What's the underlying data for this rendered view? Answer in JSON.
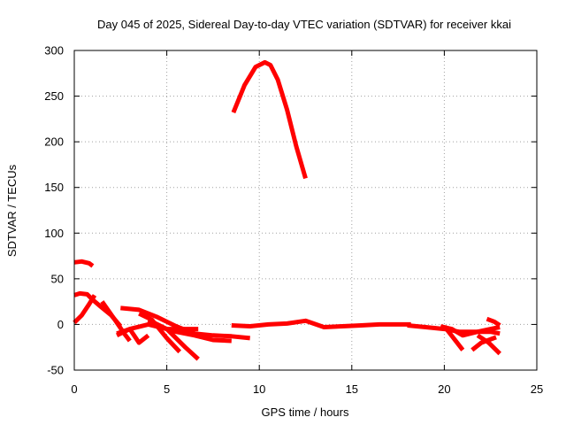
{
  "chart_data": {
    "type": "line",
    "title": "Day 045 of 2025, Sidereal Day-to-day VTEC variation (SDTVAR) for receiver kkai",
    "xlabel": "GPS time / hours",
    "ylabel": "SDTVAR / TECUs",
    "xlim": [
      0,
      25
    ],
    "ylim": [
      -50,
      300
    ],
    "xticks": [
      0,
      5,
      10,
      15,
      20,
      25
    ],
    "yticks": [
      -50,
      0,
      50,
      100,
      150,
      200,
      250,
      300
    ],
    "grid": true,
    "legend": "none",
    "color": "#ff0000",
    "series": [
      {
        "name": "arc-peak",
        "x": [
          8.6,
          9.2,
          9.8,
          10.3,
          10.6,
          11.0,
          11.5,
          12.0,
          12.5
        ],
        "y": [
          232,
          262,
          282,
          287,
          284,
          268,
          235,
          195,
          160
        ]
      },
      {
        "name": "arc-early-high",
        "x": [
          0.0,
          0.4,
          0.8,
          1.0
        ],
        "y": [
          68,
          69,
          67,
          64
        ]
      },
      {
        "name": "arc-early-mid",
        "x": [
          0.0,
          0.3,
          0.7,
          1.0,
          1.4,
          2.0,
          2.5
        ],
        "y": [
          32,
          34,
          33,
          27,
          20,
          10,
          -2
        ]
      },
      {
        "name": "arc-early-rise",
        "x": [
          0.0,
          0.4,
          0.8,
          1.1
        ],
        "y": [
          2,
          10,
          22,
          32
        ]
      },
      {
        "name": "arc-a",
        "x": [
          1.5,
          2.2,
          2.7,
          3.0
        ],
        "y": [
          25,
          5,
          -10,
          -18
        ]
      },
      {
        "name": "arc-b",
        "x": [
          2.3,
          3.0,
          3.5,
          4.0
        ],
        "y": [
          -12,
          -5,
          -20,
          -12
        ]
      },
      {
        "name": "arc-c",
        "x": [
          2.5,
          3.5,
          4.5,
          5.5,
          6.5
        ],
        "y": [
          18,
          16,
          8,
          -2,
          -10
        ]
      },
      {
        "name": "arc-d",
        "x": [
          3.5,
          4.2,
          5.0,
          5.7
        ],
        "y": [
          12,
          5,
          -15,
          -30
        ]
      },
      {
        "name": "arc-e",
        "x": [
          4.0,
          5.0,
          6.0,
          6.7
        ],
        "y": [
          5,
          -5,
          -25,
          -38
        ]
      },
      {
        "name": "arc-f",
        "x": [
          2.3,
          3.0,
          4.0,
          5.0,
          6.7
        ],
        "y": [
          -10,
          -5,
          0,
          -5,
          -5
        ]
      },
      {
        "name": "arc-g",
        "x": [
          4.5,
          5.5,
          6.5,
          7.5,
          8.5
        ],
        "y": [
          -2,
          -8,
          -12,
          -17,
          -18
        ]
      },
      {
        "name": "arc-h",
        "x": [
          5.5,
          6.5,
          7.5,
          8.5,
          9.5
        ],
        "y": [
          -5,
          -10,
          -12,
          -13,
          -15
        ]
      },
      {
        "name": "arc-mid-flat",
        "x": [
          8.5,
          9.5,
          10.5,
          11.5,
          12.5,
          13.5,
          14.5,
          15.5,
          16.5,
          17.5,
          18.2
        ],
        "y": [
          -1,
          -2,
          0,
          1,
          4,
          -3,
          -2,
          -1,
          0,
          0,
          0
        ]
      },
      {
        "name": "arc-late-1",
        "x": [
          18.0,
          19.0,
          20.0,
          20.8,
          21.5,
          22.5,
          23.0
        ],
        "y": [
          -1,
          -3,
          -5,
          -8,
          -8,
          -8,
          -10
        ]
      },
      {
        "name": "arc-late-2",
        "x": [
          19.8,
          20.4,
          21.0,
          21.8,
          22.5,
          23.0
        ],
        "y": [
          -2,
          -5,
          -12,
          -8,
          -5,
          -3
        ]
      },
      {
        "name": "arc-late-3",
        "x": [
          20.0,
          20.5,
          21.0
        ],
        "y": [
          -2,
          -15,
          -28
        ]
      },
      {
        "name": "arc-late-4",
        "x": [
          21.5,
          22.0,
          22.8
        ],
        "y": [
          -28,
          -20,
          -14
        ]
      },
      {
        "name": "arc-late-5",
        "x": [
          21.8,
          22.4,
          23.0
        ],
        "y": [
          -12,
          -20,
          -32
        ]
      },
      {
        "name": "arc-late-6",
        "x": [
          22.3,
          22.7,
          23.0
        ],
        "y": [
          6,
          3,
          -1
        ]
      }
    ]
  }
}
